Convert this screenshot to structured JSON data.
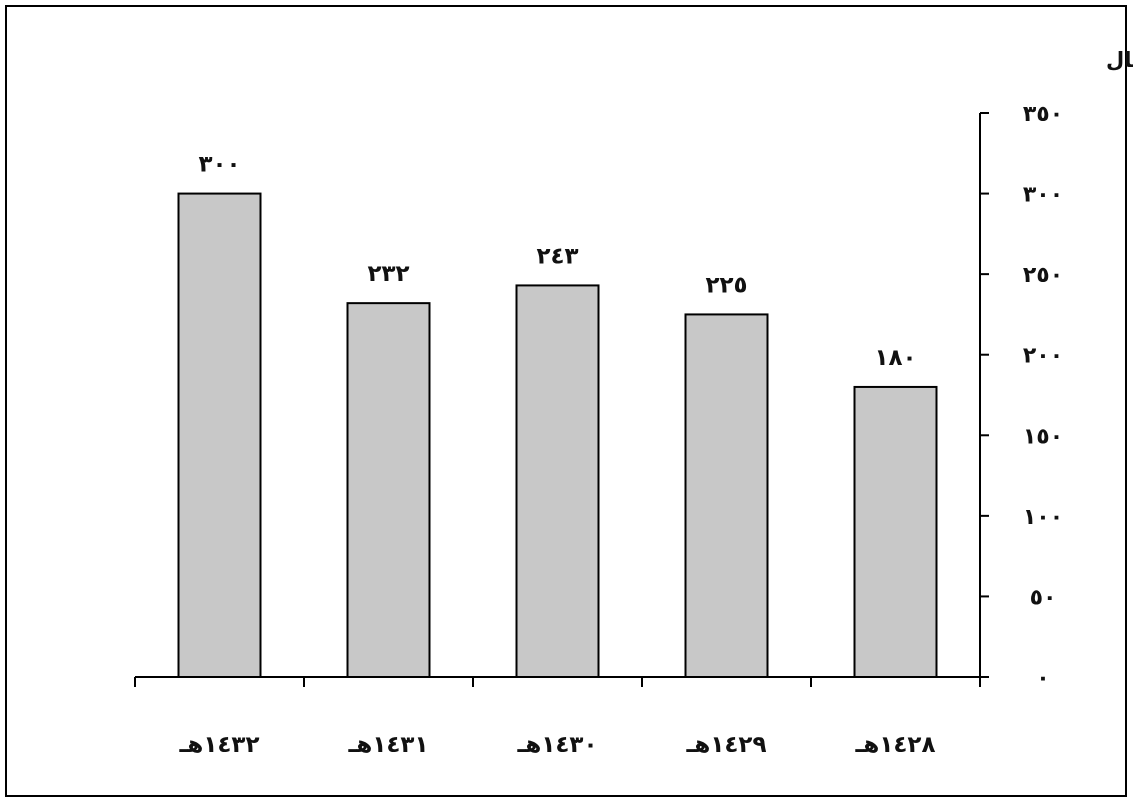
{
  "chart_data": {
    "type": "bar",
    "categories": [
      "١٤٣٢هـ",
      "١٤٣١هـ",
      "١٤٣٠هـ",
      "١٤٢٩هـ",
      "١٤٢٨هـ"
    ],
    "values": [
      300,
      232,
      243,
      225,
      180
    ],
    "value_labels": [
      "٣٠٠",
      "٢٣٢",
      "٢٤٣",
      "٢٢٥",
      "١٨٠"
    ],
    "ylabel": "مليون ريال",
    "ylim": [
      0,
      350
    ],
    "yticks": [
      0,
      50,
      100,
      150,
      200,
      250,
      300,
      350
    ],
    "ytick_labels": [
      "٠",
      "٥٠",
      "١٠٠",
      "١٥٠",
      "٢٠٠",
      "٢٥٠",
      "٣٠٠",
      "٣٥٠"
    ],
    "y_axis_side": "right",
    "grid": false,
    "legend": "none",
    "bar_color": "#c8c8c8",
    "bar_edge_color": "#000000"
  }
}
